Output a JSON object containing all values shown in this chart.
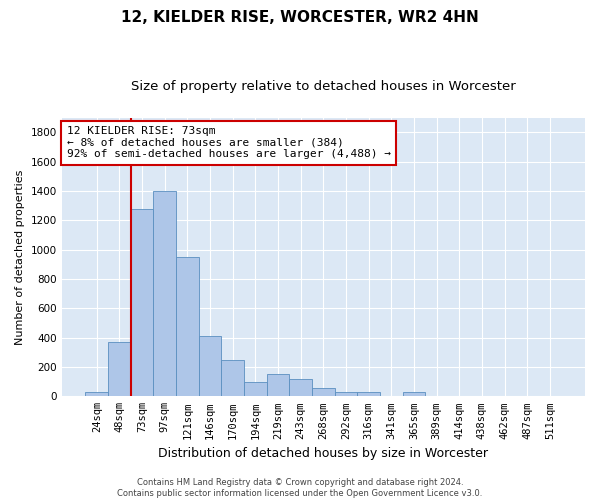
{
  "title": "12, KIELDER RISE, WORCESTER, WR2 4HN",
  "subtitle": "Size of property relative to detached houses in Worcester",
  "xlabel": "Distribution of detached houses by size in Worcester",
  "ylabel": "Number of detached properties",
  "categories": [
    "24sqm",
    "48sqm",
    "73sqm",
    "97sqm",
    "121sqm",
    "146sqm",
    "170sqm",
    "194sqm",
    "219sqm",
    "243sqm",
    "268sqm",
    "292sqm",
    "316sqm",
    "341sqm",
    "365sqm",
    "389sqm",
    "414sqm",
    "438sqm",
    "462sqm",
    "487sqm",
    "511sqm"
  ],
  "values": [
    30,
    370,
    1275,
    1400,
    950,
    410,
    250,
    100,
    155,
    120,
    55,
    30,
    30,
    5,
    30,
    5,
    5,
    5,
    5,
    5,
    5
  ],
  "bar_color": "#aec6e8",
  "bar_edgecolor": "#5a8fc0",
  "highlight_bar_index": 2,
  "highlight_line_color": "#cc0000",
  "annotation_text": "12 KIELDER RISE: 73sqm\n← 8% of detached houses are smaller (384)\n92% of semi-detached houses are larger (4,488) →",
  "annotation_box_color": "#cc0000",
  "ylim": [
    0,
    1900
  ],
  "yticks": [
    0,
    200,
    400,
    600,
    800,
    1000,
    1200,
    1400,
    1600,
    1800
  ],
  "background_color": "#dce8f5",
  "footnote": "Contains HM Land Registry data © Crown copyright and database right 2024.\nContains public sector information licensed under the Open Government Licence v3.0.",
  "title_fontsize": 11,
  "subtitle_fontsize": 9.5,
  "xlabel_fontsize": 9,
  "ylabel_fontsize": 8,
  "tick_fontsize": 7.5,
  "annotation_fontsize": 8
}
